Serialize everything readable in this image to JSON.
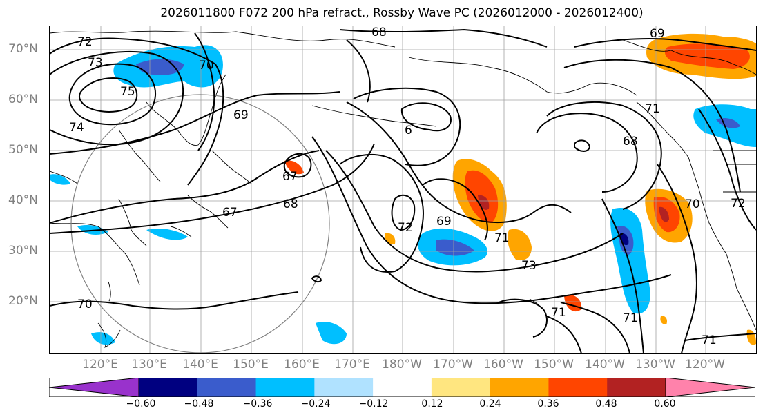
{
  "title": "2026011800 F072 200 hPa refract., Rossby Wave PC (2026012000 - 2026012400)",
  "latitude_labels": [
    "70°N",
    "60°N",
    "50°N",
    "40°N",
    "30°N",
    "20°N"
  ],
  "longitude_labels": [
    "120°E",
    "130°E",
    "140°E",
    "150°E",
    "160°E",
    "170°E",
    "180°W",
    "170°W",
    "160°W",
    "150°W",
    "140°W",
    "130°W",
    "120°W"
  ],
  "contour_labels": [
    "72",
    "73",
    "74",
    "75",
    "70",
    "69",
    "68",
    "67",
    "67",
    "68",
    "6",
    "69",
    "71",
    "68",
    "72",
    "69",
    "72",
    "71",
    "73",
    "71",
    "70",
    "71",
    "71",
    "70"
  ],
  "colorbar": {
    "tick_labels": [
      "−0.60",
      "−0.48",
      "−0.36",
      "−0.24",
      "−0.12",
      "0.12",
      "0.24",
      "0.36",
      "0.48",
      "0.60"
    ],
    "colors": [
      "#9932cc",
      "#000080",
      "#3a5ccc",
      "#00bfff",
      "#b0e2ff",
      "#ffffff",
      "#ffe680",
      "#ffa500",
      "#ff4500",
      "#b22222",
      "#ff82ab"
    ]
  }
}
